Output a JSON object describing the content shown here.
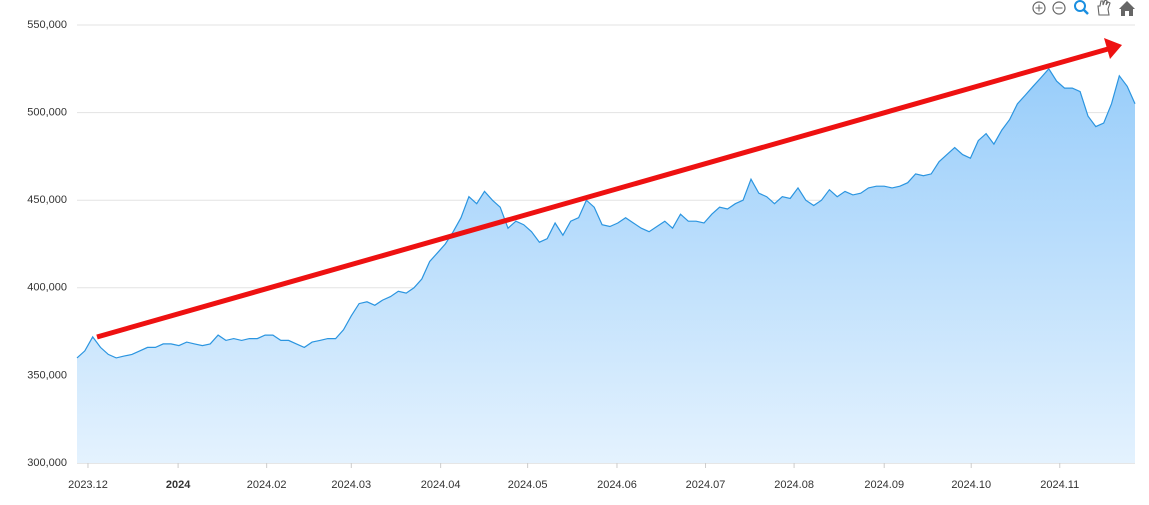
{
  "chart_data": {
    "type": "area",
    "series": [
      {
        "color": "#2b95e0",
        "values": [
          360000,
          364000,
          372000,
          366000,
          362000,
          360000,
          361000,
          362000,
          364000,
          366000,
          366000,
          368000,
          368000,
          367000,
          369000,
          368000,
          367000,
          368000,
          373000,
          370000,
          371000,
          370000,
          371000,
          371000,
          373000,
          373000,
          370000,
          370000,
          368000,
          366000,
          369000,
          370000,
          371000,
          371000,
          376000,
          384000,
          391000,
          392000,
          390000,
          393000,
          395000,
          398000,
          397000,
          400000,
          405000,
          415000,
          420000,
          425000,
          432000,
          440000,
          452000,
          448000,
          455000,
          450000,
          446000,
          434000,
          438000,
          436000,
          432000,
          426000,
          428000,
          437000,
          430000,
          438000,
          440000,
          450000,
          446000,
          436000,
          435000,
          437000,
          440000,
          437000,
          434000,
          432000,
          435000,
          438000,
          434000,
          442000,
          438000,
          438000,
          437000,
          442000,
          446000,
          445000,
          448000,
          450000,
          462000,
          454000,
          452000,
          448000,
          452000,
          451000,
          457000,
          450000,
          447000,
          450000,
          456000,
          452000,
          455000,
          453000,
          454000,
          457000,
          458000,
          458000,
          457000,
          458000,
          460000,
          465000,
          464000,
          465000,
          472000,
          476000,
          480000,
          476000,
          474000,
          484000,
          488000,
          482000,
          490000,
          496000,
          505000,
          510000,
          515000,
          520000,
          525000,
          518000,
          514000,
          514000,
          512000,
          498000,
          492000,
          494000,
          505000,
          521000,
          515000,
          505000
        ]
      }
    ],
    "xlim": [
      0,
      135
    ],
    "xticks": [
      {
        "value": 1.4,
        "label": "2023.12"
      },
      {
        "value": 12.9,
        "label": "2024"
      },
      {
        "value": 24.2,
        "label": "2024.02"
      },
      {
        "value": 35,
        "label": "2024.03"
      },
      {
        "value": 46.4,
        "label": "2024.04"
      },
      {
        "value": 57.5,
        "label": "2024.05"
      },
      {
        "value": 68.9,
        "label": "2024.06"
      },
      {
        "value": 80.2,
        "label": "2024.07"
      },
      {
        "value": 91.5,
        "label": "2024.08"
      },
      {
        "value": 103,
        "label": "2024.09"
      },
      {
        "value": 114.1,
        "label": "2024.10"
      },
      {
        "value": 125.4,
        "label": "2024.11"
      }
    ],
    "ylim": [
      300000,
      550000
    ],
    "yticks": [
      {
        "value": 300000,
        "label": "300,000"
      },
      {
        "value": 350000,
        "label": "350,000"
      },
      {
        "value": 400000,
        "label": "400,000"
      },
      {
        "value": 450000,
        "label": "450,000"
      },
      {
        "value": 500000,
        "label": "500,000"
      },
      {
        "value": 550000,
        "label": "550,000"
      }
    ],
    "grid": true
  }
}
